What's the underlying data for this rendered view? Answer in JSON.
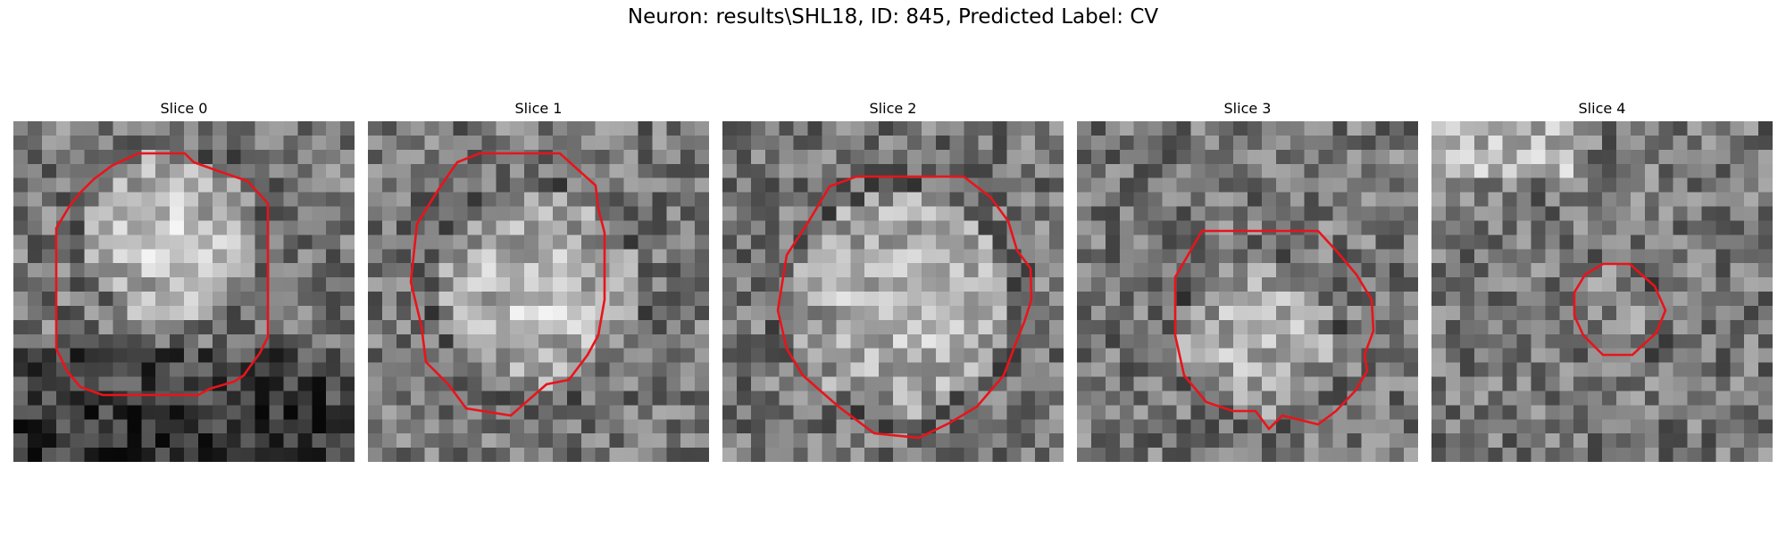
{
  "figure": {
    "title": "Neuron: results\\SHL18, ID: 845, Predicted Label: CV"
  },
  "outline_color": "#e8141b",
  "panels": [
    {
      "title": "Slice 0"
    },
    {
      "title": "Slice 1"
    },
    {
      "title": "Slice 2"
    },
    {
      "title": "Slice 3"
    },
    {
      "title": "Slice 4"
    }
  ]
}
